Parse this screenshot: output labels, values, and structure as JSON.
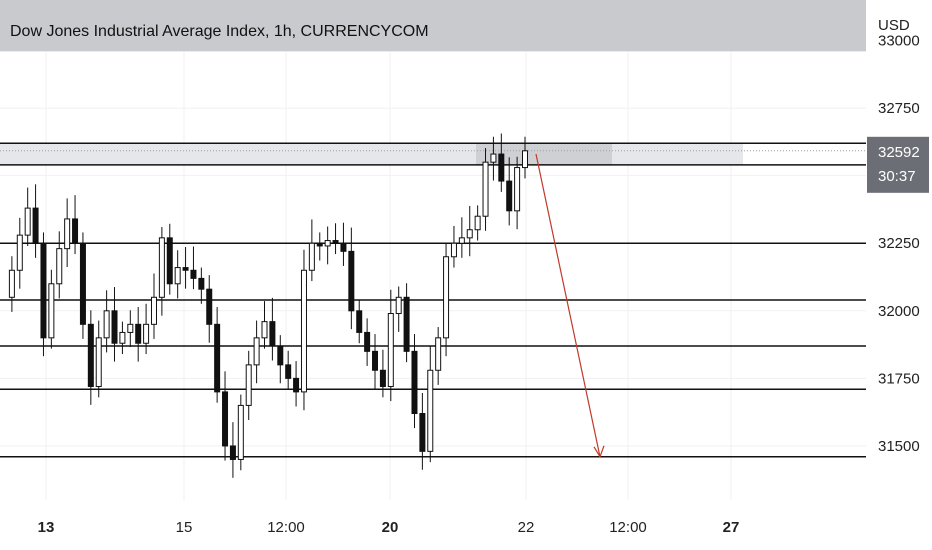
{
  "chart_data": {
    "type": "candlestick",
    "title": "Dow Jones Industrial Average Index, 1h, CURRENCYCOM",
    "currency": "USD",
    "ylim": [
      31300,
      33150
    ],
    "y_ticks": [
      33000,
      32750,
      32500,
      32250,
      32000,
      31750,
      31500
    ],
    "y_tick_labels": [
      "33000",
      "32750",
      "",
      "32250",
      "32000",
      "31750",
      "31500"
    ],
    "x_ticks": [
      {
        "label": "13",
        "bold": true
      },
      {
        "label": "15",
        "bold": false
      },
      {
        "label": "12:00",
        "bold": false
      },
      {
        "label": "20",
        "bold": true
      },
      {
        "label": "22",
        "bold": false
      },
      {
        "label": "12:00",
        "bold": false
      },
      {
        "label": "27",
        "bold": true
      }
    ],
    "current_price": "32592",
    "countdown": "30:37",
    "current_value": 32592,
    "horizontal_levels": [
      32620,
      32540,
      32250,
      32040,
      31870,
      31710,
      31460
    ],
    "shaded_zones": [
      {
        "from": 32960,
        "to": 33150,
        "color": "#c9cace"
      },
      {
        "from": 32540,
        "to": 32620,
        "color": "#e6e7ea"
      }
    ],
    "projection_arrow": {
      "from": 32580,
      "to": 31460,
      "color": "#c0392b"
    },
    "grid": true,
    "candle_color": "#111111",
    "price_series": [
      32050,
      32150,
      32280,
      32380,
      32250,
      31900,
      32100,
      32230,
      32340,
      32250,
      31950,
      31720,
      31900,
      32000,
      31880,
      31920,
      31950,
      31880,
      31950,
      32050,
      32270,
      32100,
      32160,
      32150,
      32120,
      32080,
      31950,
      31700,
      31500,
      31450,
      31650,
      31800,
      31900,
      31960,
      31870,
      31800,
      31750,
      31700,
      32150,
      32250,
      32240,
      32260,
      32250,
      32220,
      32000,
      31920,
      31850,
      31780,
      31720,
      31990,
      32050,
      31850,
      31620,
      31480,
      31780,
      31900,
      32200,
      32250,
      32270,
      32300,
      32350,
      32550,
      32580,
      32480,
      32370,
      32530,
      32592
    ]
  }
}
